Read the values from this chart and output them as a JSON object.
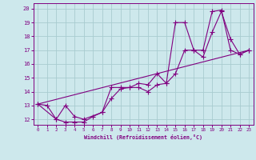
{
  "xlabel": "Windchill (Refroidissement éolien,°C)",
  "bg_color": "#cde8ec",
  "line_color": "#800080",
  "grid_color": "#a8ccd0",
  "xlim": [
    -0.5,
    23.5
  ],
  "ylim": [
    11.6,
    20.4
  ],
  "yticks": [
    12,
    13,
    14,
    15,
    16,
    17,
    18,
    19,
    20
  ],
  "xticks": [
    0,
    1,
    2,
    3,
    4,
    5,
    6,
    7,
    8,
    9,
    10,
    11,
    12,
    13,
    14,
    15,
    16,
    17,
    18,
    19,
    20,
    21,
    22,
    23
  ],
  "line1_x": [
    0,
    1,
    2,
    3,
    4,
    5,
    6,
    7,
    8,
    9,
    10,
    11,
    12,
    13,
    14,
    15,
    16,
    17,
    18,
    19,
    20,
    21,
    22,
    23
  ],
  "line1_y": [
    13.1,
    13.0,
    12.0,
    11.8,
    11.8,
    11.8,
    12.2,
    12.5,
    13.5,
    14.2,
    14.3,
    14.3,
    14.0,
    14.5,
    14.6,
    15.3,
    17.0,
    17.0,
    16.5,
    18.3,
    19.8,
    17.8,
    16.7,
    17.0
  ],
  "line2_x": [
    0,
    2,
    3,
    4,
    5,
    7,
    8,
    9,
    10,
    11,
    12,
    13,
    14,
    15,
    16,
    17,
    18,
    19,
    20,
    21,
    22,
    23
  ],
  "line2_y": [
    13.1,
    12.0,
    13.0,
    12.2,
    12.0,
    12.5,
    14.3,
    14.3,
    14.3,
    14.6,
    14.5,
    15.3,
    14.6,
    19.0,
    19.0,
    17.0,
    17.0,
    19.8,
    19.9,
    17.0,
    16.7,
    17.0
  ],
  "line3_x": [
    0,
    23
  ],
  "line3_y": [
    13.1,
    17.0
  ]
}
